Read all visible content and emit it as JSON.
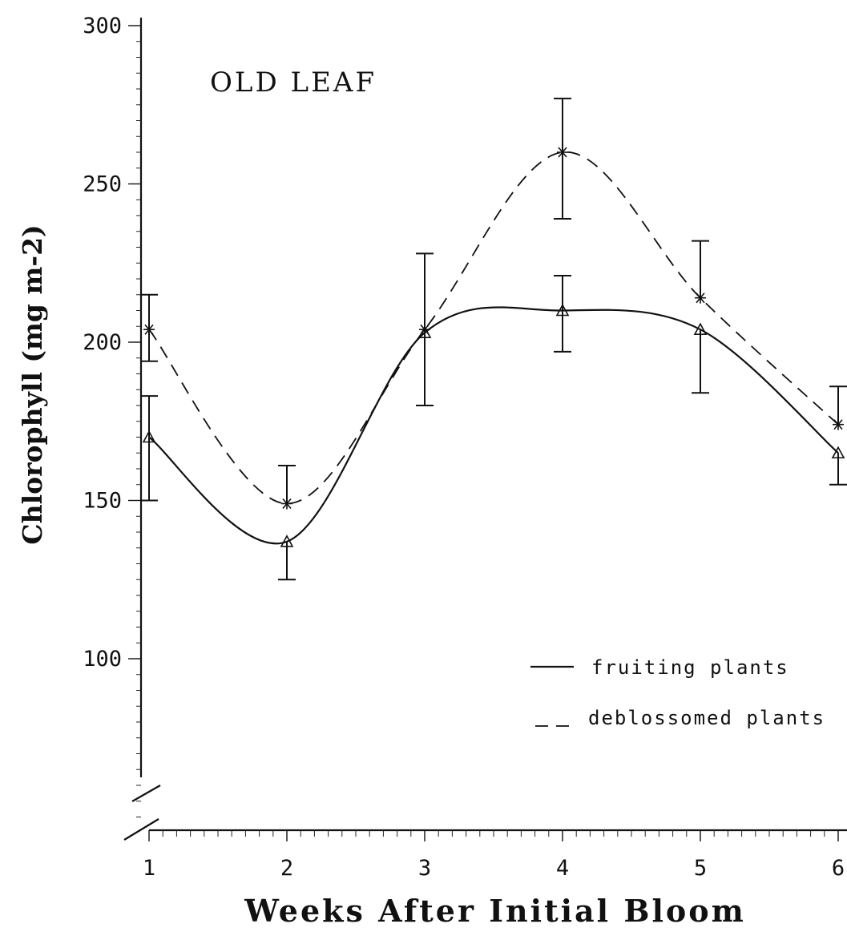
{
  "chart_data": {
    "type": "line",
    "title": "OLD LEAF",
    "xlabel": "Weeks After Initial Bloom",
    "ylabel": "Chlorophyll (mg m-2)",
    "x": [
      1,
      2,
      3,
      4,
      5,
      6
    ],
    "x_tick_labels": [
      "1",
      "2",
      "3",
      "4",
      "5",
      "6"
    ],
    "y_ticks": [
      100,
      150,
      200,
      250,
      300
    ],
    "y_tick_labels": [
      "100",
      "150",
      "200",
      "250",
      "300"
    ],
    "ylim": [
      47,
      300
    ],
    "xlim": [
      1,
      6
    ],
    "legend_position": "right, lower-middle",
    "series": [
      {
        "name": "fruiting plants",
        "line_style": "solid",
        "marker": "triangle",
        "values": [
          170,
          137,
          203,
          210,
          204,
          165
        ],
        "err_low": [
          150,
          125,
          180,
          197,
          184,
          155
        ],
        "err_high": [
          183,
          137,
          228,
          221,
          204,
          165
        ]
      },
      {
        "name": "deblossomed plants",
        "line_style": "dashed",
        "marker": "asterisk",
        "values": [
          204,
          149,
          204,
          260,
          214,
          174
        ],
        "err_low": [
          194,
          149,
          204,
          239,
          214,
          174
        ],
        "err_high": [
          215,
          161,
          204,
          277,
          232,
          186
        ]
      }
    ]
  },
  "legend": {
    "fruiting_label": "fruiting plants",
    "deblossomed_label": "deblossomed plants"
  }
}
